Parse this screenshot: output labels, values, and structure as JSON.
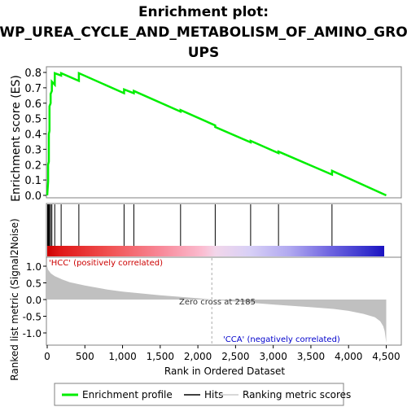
{
  "title_line1": "Enrichment plot:",
  "title_line2": "WP_UREA_CYCLE_AND_METABOLISM_OF_AMINO_GRO",
  "title_line3": "UPS",
  "top_panel": {
    "ylabel": "Enrichment score (ES)",
    "y_ticks": [
      "0.0",
      "0.1",
      "0.2",
      "0.3",
      "0.4",
      "0.5",
      "0.6",
      "0.7",
      "0.8"
    ],
    "ylim": [
      0.0,
      0.8
    ]
  },
  "bottom_panel": {
    "ylabel": "Ranked list metric (Signal2Noise)",
    "xlabel": "Rank in Ordered Dataset",
    "y_ticks": [
      "1.0",
      "0.5",
      "0.0",
      "-0.5",
      "-1.0"
    ],
    "x_ticks": [
      "0",
      "500",
      "1,000",
      "1,500",
      "2,000",
      "2,500",
      "3,000",
      "3,500",
      "4,000",
      "4,500"
    ],
    "label_pos": "'HCC' (positively correlated)",
    "label_neg": "'CCA' (negatively correlated)",
    "zero_cross": "Zero cross at 2185"
  },
  "legend": {
    "enrichment": "Enrichment profile",
    "hits": "Hits",
    "ranking": "Ranking metric scores"
  },
  "colors": {
    "enrichment_line": "#00ee00",
    "background_panel": "#ffffff",
    "outer_background": "#dfdfdf",
    "metric_fill": "#c0c0c0",
    "hcc_label": "#cc0000",
    "cca_label": "#0000cc"
  },
  "chart_data": {
    "type": "line",
    "xlim": [
      0,
      4700
    ],
    "n_genes": 4502,
    "es_profile": {
      "x": [
        0,
        12,
        12,
        22,
        22,
        30,
        30,
        45,
        45,
        62,
        62,
        100,
        100,
        185,
        185,
        420,
        420,
        1020,
        1020,
        1150,
        1150,
        1770,
        1770,
        2230,
        2230,
        2700,
        2700,
        3070,
        3070,
        3780,
        3780,
        4500
      ],
      "y": [
        0.0,
        0.09,
        0.2,
        0.22,
        0.4,
        0.42,
        0.58,
        0.6,
        0.66,
        0.68,
        0.74,
        0.72,
        0.795,
        0.78,
        0.795,
        0.745,
        0.795,
        0.665,
        0.69,
        0.665,
        0.68,
        0.545,
        0.555,
        0.455,
        0.445,
        0.345,
        0.355,
        0.275,
        0.285,
        0.135,
        0.16,
        0.0
      ]
    },
    "hits": [
      5,
      12,
      22,
      30,
      45,
      62,
      100,
      185,
      420,
      1020,
      1150,
      1770,
      2230,
      2700,
      3070,
      3780
    ],
    "ranking_metric": {
      "x": [
        0,
        10,
        50,
        100,
        200,
        300,
        500,
        800,
        1000,
        1500,
        2000,
        2185,
        2500,
        3000,
        3500,
        3800,
        4000,
        4200,
        4350,
        4420,
        4460,
        4480,
        4495,
        4500
      ],
      "y": [
        1.0,
        0.9,
        0.78,
        0.7,
        0.6,
        0.52,
        0.42,
        0.3,
        0.24,
        0.13,
        0.04,
        0.0,
        -0.06,
        -0.15,
        -0.23,
        -0.28,
        -0.34,
        -0.43,
        -0.53,
        -0.65,
        -0.8,
        -0.95,
        -1.2,
        -1.3
      ]
    },
    "metric_ylim": [
      -1.3,
      1.3
    ],
    "zero_cross_rank": 2185
  }
}
